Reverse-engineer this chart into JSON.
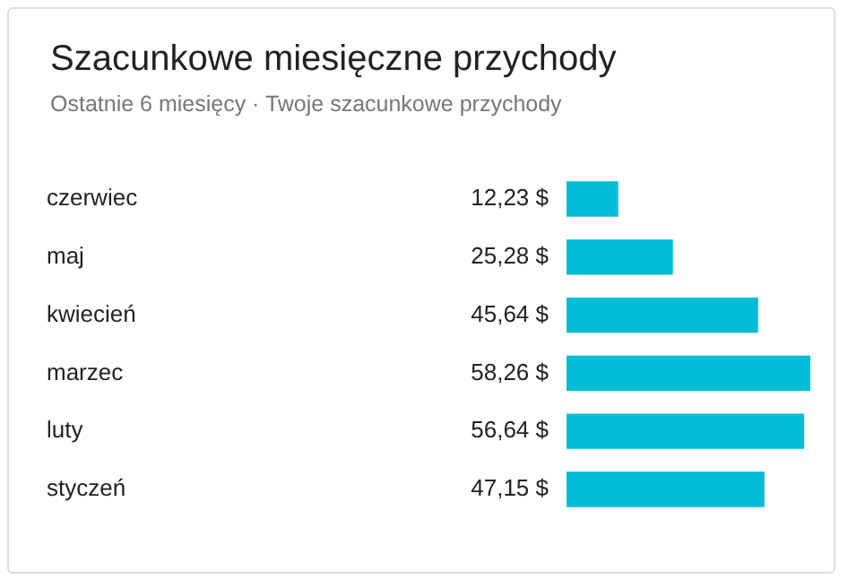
{
  "chart_data": {
    "type": "bar",
    "orientation": "horizontal",
    "title": "Szacunkowe miesięczne przychody",
    "subtitle": "Ostatnie 6 miesięcy · Twoje szacunkowe przychody",
    "categories": [
      "czerwiec",
      "maj",
      "kwiecień",
      "marzec",
      "luty",
      "styczeń"
    ],
    "values": [
      12.23,
      25.28,
      45.64,
      58.26,
      56.64,
      47.15
    ],
    "value_labels": [
      "12,23 $",
      "25,28 $",
      "45,64 $",
      "58,26 $",
      "56,64 $",
      "47,15 $"
    ],
    "color": "#00bcd4",
    "grid": false,
    "legend": false
  }
}
